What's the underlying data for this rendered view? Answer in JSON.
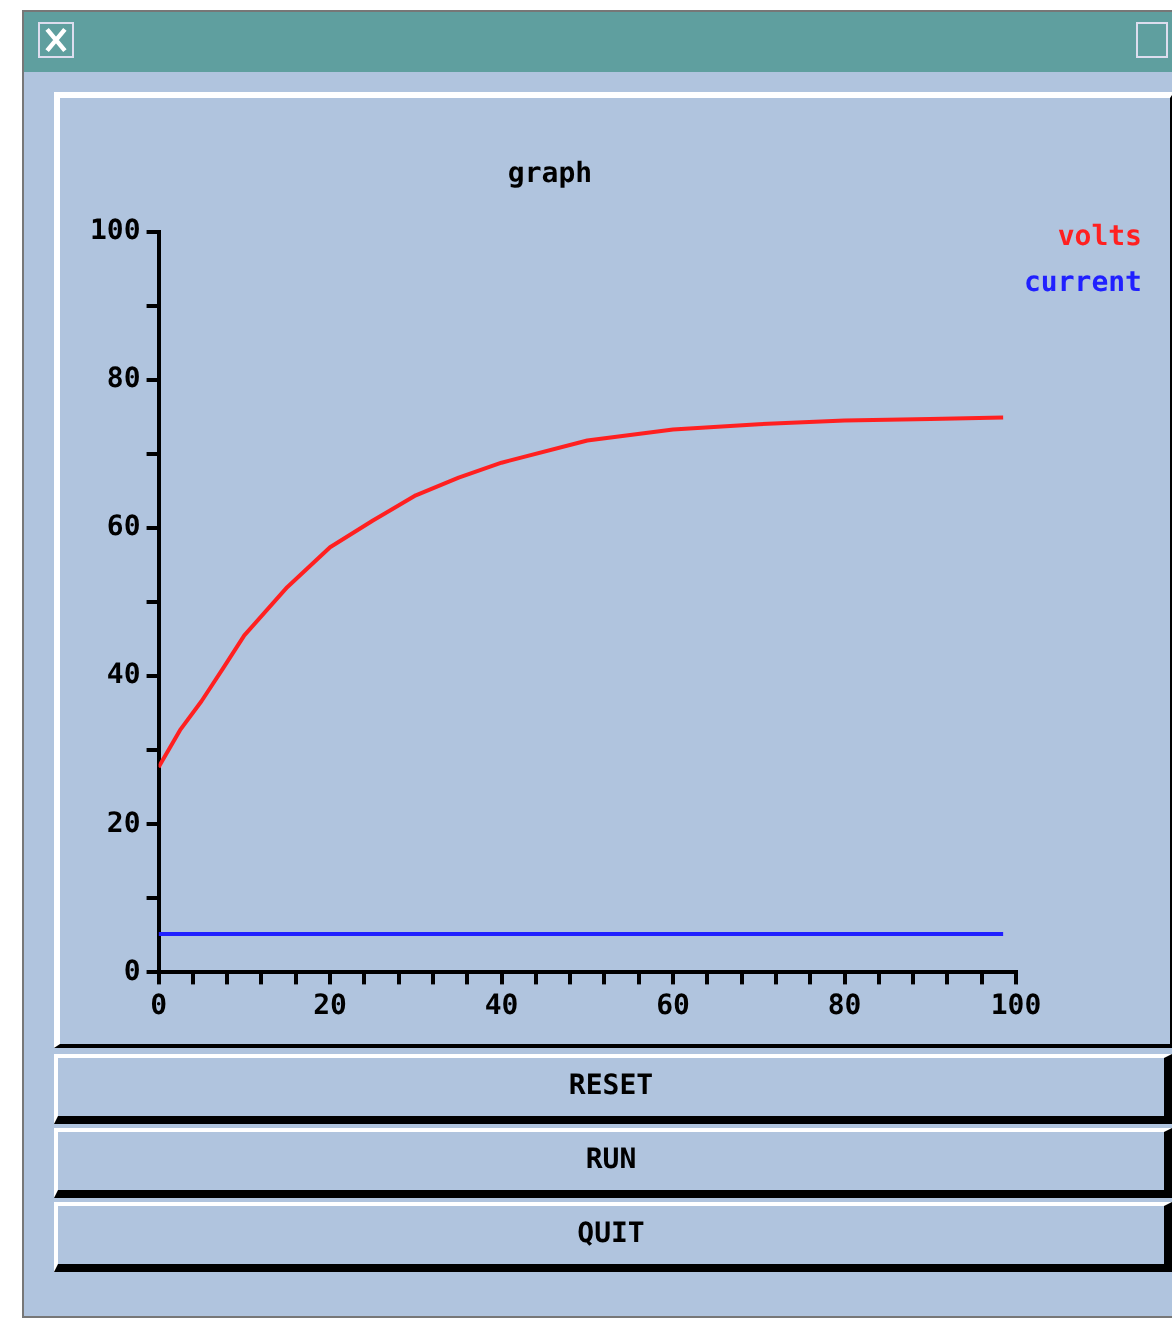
{
  "chart_data": {
    "type": "line",
    "title": "graph",
    "xlim": [
      0,
      100
    ],
    "xticks": [
      0,
      {
        "value": 4,
        "label": null
      },
      {
        "value": 8,
        "label": null
      },
      {
        "value": 12,
        "label": null
      },
      {
        "value": 16,
        "label": null
      },
      20,
      {
        "value": 24,
        "label": null
      },
      {
        "value": 28,
        "label": null
      },
      {
        "value": 32,
        "label": null
      },
      {
        "value": 36,
        "label": null
      },
      40,
      {
        "value": 44,
        "label": null
      },
      {
        "value": 48,
        "label": null
      },
      {
        "value": 52,
        "label": null
      },
      {
        "value": 56,
        "label": null
      },
      60,
      {
        "value": 64,
        "label": null
      },
      {
        "value": 68,
        "label": null
      },
      {
        "value": 72,
        "label": null
      },
      {
        "value": 76,
        "label": null
      },
      80,
      {
        "value": 84,
        "label": null
      },
      {
        "value": 88,
        "label": null
      },
      {
        "value": 92,
        "label": null
      },
      {
        "value": 96,
        "label": null
      },
      100
    ],
    "ylim": [
      0,
      100
    ],
    "yticks": [
      0,
      {
        "value": 10,
        "label": null
      },
      20,
      {
        "value": 30,
        "label": null
      },
      40,
      {
        "value": 50,
        "label": null
      },
      60,
      {
        "value": 70,
        "label": null
      },
      80,
      {
        "value": 90,
        "label": null
      },
      100
    ],
    "grid": false,
    "legend": "top right",
    "marker": "none",
    "line_style": "solid",
    "series": [
      {
        "name": "volts",
        "color": "#ff2020",
        "x": [
          0,
          2.5,
          5,
          7.5,
          10,
          15,
          20,
          25,
          30,
          35,
          40,
          50,
          60,
          70,
          80,
          90,
          98.5
        ],
        "values": [
          27.7,
          32.7,
          36.6,
          41,
          45.5,
          52,
          57.4,
          61,
          64.4,
          66.8,
          68.8,
          71.8,
          73.3,
          74,
          74.5,
          74.7,
          74.9
        ]
      },
      {
        "name": "current",
        "color": "#2020ff",
        "x": [
          0,
          98.5
        ],
        "values": [
          5.2,
          5.2
        ]
      }
    ],
    "annotations": [
      "RESET",
      "RUN",
      "QUIT"
    ]
  }
}
